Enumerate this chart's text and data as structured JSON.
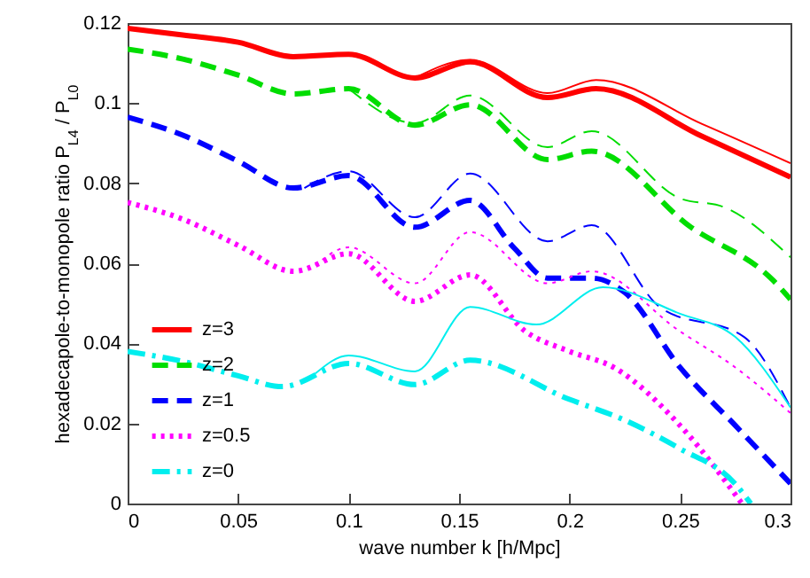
{
  "chart_data": {
    "type": "line",
    "xlabel": "wave number k [h/Mpc]",
    "ylabel": "hexadecapole-to-monopole ratio P$_{L4}$ / P$_{L0}$",
    "xlim": [
      0,
      0.3
    ],
    "xticks": [
      0,
      0.05,
      0.1,
      0.15,
      0.2,
      0.25,
      0.3
    ],
    "ylim": [
      0,
      0.12
    ],
    "yticks": [
      0,
      0.02,
      0.04,
      0.06,
      0.08,
      0.1,
      0.12
    ],
    "grid": false,
    "legend": "bottom left",
    "marker": "none",
    "series": [
      {
        "name": "z=3",
        "color": "#ff0000",
        "line_style": "solid",
        "x": [
          0,
          0.025,
          0.05,
          0.075,
          0.1,
          0.13,
          0.155,
          0.19,
          0.212,
          0.26,
          0.3
        ],
        "values": [
          0.1187,
          0.117,
          0.1152,
          0.1116,
          0.1122,
          0.1063,
          0.1103,
          0.1014,
          0.1036,
          0.0917,
          0.0815
        ]
      },
      {
        "name": "z=2",
        "color": "#00dd00",
        "line_style": "dashed",
        "x": [
          0,
          0.025,
          0.05,
          0.075,
          0.1,
          0.13,
          0.155,
          0.19,
          0.21,
          0.255,
          0.292,
          0.3
        ],
        "values": [
          0.1135,
          0.111,
          0.107,
          0.1023,
          0.1036,
          0.0945,
          0.0996,
          0.0859,
          0.088,
          0.069,
          0.0558,
          0.051
        ]
      },
      {
        "name": "z=1",
        "color": "#0000ff",
        "line_style": "dashed",
        "x": [
          0,
          0.025,
          0.05,
          0.075,
          0.1,
          0.13,
          0.155,
          0.175,
          0.19,
          0.21,
          0.225,
          0.25,
          0.275,
          0.3
        ],
        "values": [
          0.0965,
          0.092,
          0.0855,
          0.0788,
          0.0819,
          0.069,
          0.0757,
          0.0638,
          0.0563,
          0.0563,
          0.0527,
          0.034,
          0.0195,
          0.005
        ]
      },
      {
        "name": "z=0.5",
        "color": "#ff00ff",
        "line_style": "dotted",
        "x": [
          0,
          0.025,
          0.05,
          0.075,
          0.1,
          0.13,
          0.155,
          0.18,
          0.2,
          0.22,
          0.25,
          0.278
        ],
        "values": [
          0.0752,
          0.071,
          0.0645,
          0.058,
          0.0624,
          0.0505,
          0.0571,
          0.043,
          0.038,
          0.034,
          0.0195,
          0
        ]
      },
      {
        "name": "z=0",
        "color": "#00eeee",
        "line_style": "dashdot",
        "x": [
          0,
          0.025,
          0.05,
          0.07,
          0.1,
          0.13,
          0.155,
          0.2,
          0.225,
          0.25,
          0.275,
          0.282
        ],
        "values": [
          0.038,
          0.0355,
          0.0319,
          0.0292,
          0.035,
          0.0297,
          0.0358,
          0.026,
          0.0208,
          0.0137,
          0.0049,
          0
        ]
      },
      {
        "color": "#ff0000",
        "line_style": "solid",
        "x": [
          0.13,
          0.155,
          0.19,
          0.212,
          0.26,
          0.3
        ],
        "values": [
          0.1063,
          0.1108,
          0.1025,
          0.1058,
          0.0948,
          0.085
        ]
      },
      {
        "color": "#00dd00",
        "line_style": "dashed",
        "x": [
          0.1,
          0.13,
          0.155,
          0.19,
          0.21,
          0.25,
          0.27,
          0.3
        ],
        "values": [
          0.1036,
          0.095,
          0.1019,
          0.089,
          0.093,
          0.0762,
          0.074,
          0.0615
        ]
      },
      {
        "color": "#0000ff",
        "line_style": "dashed",
        "x": [
          0.08,
          0.1,
          0.13,
          0.155,
          0.19,
          0.21,
          0.241,
          0.279,
          0.3
        ],
        "values": [
          0.0788,
          0.083,
          0.0715,
          0.0824,
          0.0655,
          0.0695,
          0.049,
          0.0416,
          0.024
        ]
      },
      {
        "color": "#ff00ff",
        "line_style": "dotted",
        "x": [
          0.085,
          0.1,
          0.13,
          0.155,
          0.19,
          0.21,
          0.25,
          0.275,
          0.3
        ],
        "values": [
          0.0595,
          0.064,
          0.055,
          0.0678,
          0.055,
          0.058,
          0.043,
          0.034,
          0.0226
        ]
      },
      {
        "color": "#00eeee",
        "line_style": "solid",
        "x": [
          0.085,
          0.1,
          0.13,
          0.155,
          0.185,
          0.215,
          0.25,
          0.275,
          0.3
        ],
        "values": [
          0.0325,
          0.037,
          0.033,
          0.0491,
          0.0447,
          0.054,
          0.0474,
          0.0416,
          0.024
        ]
      }
    ]
  }
}
